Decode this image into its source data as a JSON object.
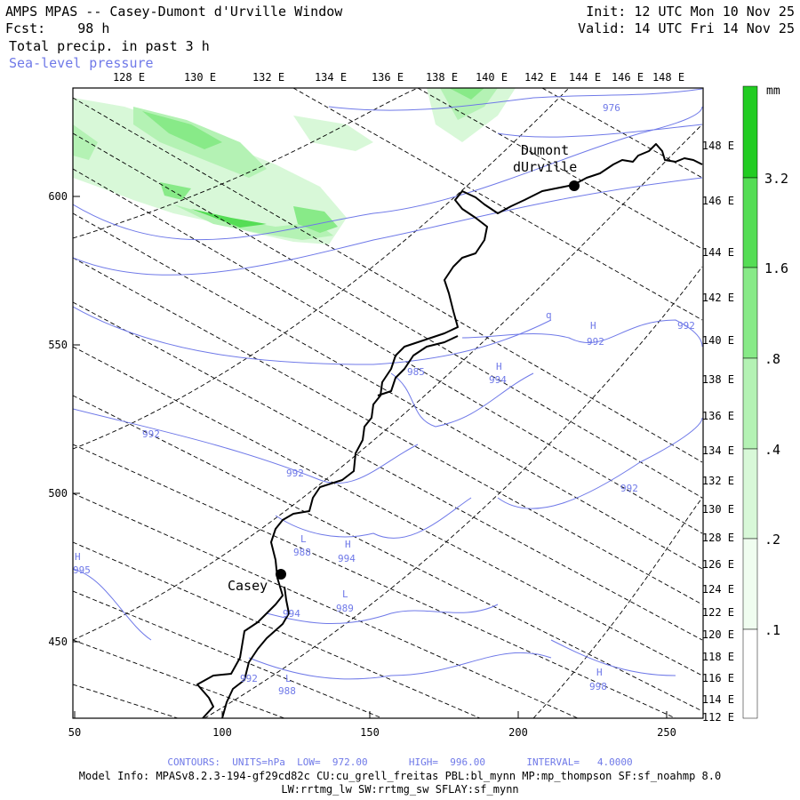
{
  "header": {
    "title": "AMPS MPAS -- Casey-Dumont d'Urville Window",
    "fcst": "Fcst:    98 h",
    "field": "Total precip. in past 3 h",
    "overlay": "Sea-level pressure",
    "init": "Init: 12 UTC Mon 10 Nov 25",
    "valid": "Valid: 14 UTC Fri 14 Nov 25"
  },
  "axes": {
    "top_lon": [
      "128 E",
      "130 E",
      "132 E",
      "134 E",
      "136 E",
      "138 E",
      "140 E",
      "142 E",
      "144 E",
      "146 E",
      "148 E"
    ],
    "right_lon": [
      "148 E",
      "146 E",
      "144 E",
      "142 E",
      "140 E",
      "138 E",
      "136 E",
      "134 E",
      "132 E",
      "130 E",
      "128 E",
      "126 E",
      "124 E",
      "122 E",
      "120 E",
      "118 E",
      "116 E",
      "114 E",
      "112 E"
    ],
    "left_y": [
      "600",
      "550",
      "500",
      "450"
    ],
    "bottom_x": [
      "50",
      "100",
      "150",
      "200",
      "250"
    ]
  },
  "stations": [
    {
      "name": "Casey"
    },
    {
      "name": "Dumont",
      "name2": "dUrville"
    }
  ],
  "pressure_labels": [
    "976",
    "H",
    "992",
    "q",
    "992",
    "H",
    "994",
    "985",
    "992",
    "992",
    "992",
    "L",
    "988",
    "H",
    "994",
    "L",
    "989",
    "994",
    "992",
    "L",
    "988",
    "H",
    "995",
    "H",
    "998"
  ],
  "colorbar": {
    "unit": "mm",
    "labels": [
      "3.2",
      "1.6",
      ".8",
      ".4",
      ".2",
      ".1"
    ],
    "colors": [
      "#22cc22",
      "#55dd55",
      "#88ea88",
      "#b4f2b4",
      "#d8f8d8",
      "#f0fdf0"
    ]
  },
  "footer": {
    "contours": "CONTOURS:  UNITS=hPa  LOW=  972.00       HIGH=  996.00       INTERVAL=   4.0000",
    "model_info": "Model Info: MPASv8.2.3-194-gf29cd82c CU:cu_grell_freitas PBL:bl_mynn MP:mp_thompson SF:sf_noahmp 8.0",
    "model_info2": "LW:rrtmg_lw SW:rrtmg_sw SFLAY:sf_mynn"
  }
}
